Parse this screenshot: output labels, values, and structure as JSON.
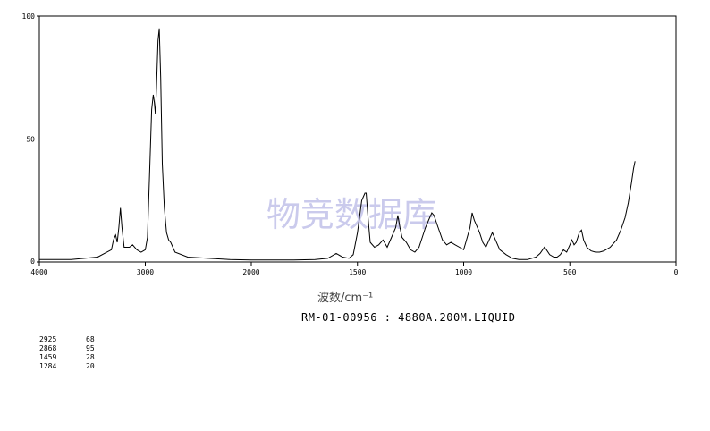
{
  "chart_data": {
    "type": "line",
    "title": "",
    "xlabel": "波数/cm⁻¹",
    "ylabel": "",
    "xlim": [
      4000,
      0
    ],
    "ylim": [
      0,
      100
    ],
    "x_ticks": [
      "4000",
      "3000",
      "2000",
      "1500",
      "1000",
      "500",
      "0"
    ],
    "y_ticks": [
      "100",
      "50",
      "0"
    ],
    "grid": false,
    "series": [
      {
        "points": [
          [
            4000,
            1
          ],
          [
            3700,
            1
          ],
          [
            3450,
            2
          ],
          [
            3320,
            5
          ],
          [
            3300,
            9
          ],
          [
            3280,
            11
          ],
          [
            3265,
            8
          ],
          [
            3250,
            14
          ],
          [
            3235,
            22
          ],
          [
            3220,
            14
          ],
          [
            3200,
            6
          ],
          [
            3150,
            6
          ],
          [
            3120,
            7
          ],
          [
            3080,
            5
          ],
          [
            3040,
            4
          ],
          [
            3000,
            5
          ],
          [
            2980,
            10
          ],
          [
            2960,
            35
          ],
          [
            2940,
            62
          ],
          [
            2925,
            68
          ],
          [
            2915,
            65
          ],
          [
            2905,
            60
          ],
          [
            2895,
            70
          ],
          [
            2880,
            90
          ],
          [
            2868,
            95
          ],
          [
            2855,
            75
          ],
          [
            2840,
            40
          ],
          [
            2820,
            22
          ],
          [
            2800,
            12
          ],
          [
            2780,
            9
          ],
          [
            2760,
            8
          ],
          [
            2720,
            4
          ],
          [
            2600,
            2
          ],
          [
            2400,
            1.5
          ],
          [
            2200,
            1
          ],
          [
            2000,
            0.8
          ],
          [
            1800,
            0.8
          ],
          [
            1700,
            1
          ],
          [
            1640,
            1.5
          ],
          [
            1600,
            3.5
          ],
          [
            1570,
            2
          ],
          [
            1540,
            1.5
          ],
          [
            1520,
            3
          ],
          [
            1500,
            12
          ],
          [
            1480,
            25
          ],
          [
            1465,
            28
          ],
          [
            1459,
            28
          ],
          [
            1450,
            18
          ],
          [
            1440,
            8
          ],
          [
            1420,
            6
          ],
          [
            1400,
            7
          ],
          [
            1380,
            9
          ],
          [
            1360,
            6
          ],
          [
            1340,
            10
          ],
          [
            1320,
            14
          ],
          [
            1310,
            19
          ],
          [
            1300,
            14
          ],
          [
            1290,
            10
          ],
          [
            1270,
            8
          ],
          [
            1250,
            5
          ],
          [
            1230,
            4
          ],
          [
            1210,
            6
          ],
          [
            1180,
            14
          ],
          [
            1160,
            18
          ],
          [
            1150,
            20
          ],
          [
            1140,
            19
          ],
          [
            1120,
            14
          ],
          [
            1100,
            9
          ],
          [
            1080,
            7
          ],
          [
            1060,
            8
          ],
          [
            1040,
            7
          ],
          [
            1020,
            6
          ],
          [
            1000,
            5
          ],
          [
            990,
            8
          ],
          [
            970,
            14
          ],
          [
            960,
            20
          ],
          [
            950,
            17
          ],
          [
            940,
            15
          ],
          [
            925,
            12
          ],
          [
            910,
            8
          ],
          [
            895,
            6
          ],
          [
            880,
            9
          ],
          [
            865,
            12
          ],
          [
            850,
            9
          ],
          [
            830,
            5
          ],
          [
            800,
            3
          ],
          [
            770,
            1.5
          ],
          [
            740,
            1
          ],
          [
            700,
            1
          ],
          [
            660,
            2
          ],
          [
            640,
            3.5
          ],
          [
            620,
            6
          ],
          [
            610,
            5
          ],
          [
            595,
            3
          ],
          [
            575,
            2
          ],
          [
            560,
            2
          ],
          [
            545,
            3
          ],
          [
            530,
            5
          ],
          [
            515,
            4
          ],
          [
            500,
            7
          ],
          [
            490,
            9
          ],
          [
            480,
            7
          ],
          [
            470,
            8
          ],
          [
            455,
            12
          ],
          [
            445,
            13
          ],
          [
            435,
            9
          ],
          [
            420,
            6
          ],
          [
            400,
            4.5
          ],
          [
            380,
            4
          ],
          [
            360,
            4
          ],
          [
            340,
            4.5
          ],
          [
            310,
            6
          ],
          [
            280,
            9
          ],
          [
            260,
            13
          ],
          [
            240,
            18
          ],
          [
            225,
            24
          ],
          [
            210,
            32
          ],
          [
            200,
            38
          ],
          [
            193,
            41
          ]
        ]
      }
    ]
  },
  "caption": "RM-01-00956 : 4880A.200M.LIQUID",
  "watermark": "物竞数据库",
  "peak_table": [
    {
      "wavenumber": "2925",
      "value": "68"
    },
    {
      "wavenumber": "2868",
      "value": "95"
    },
    {
      "wavenumber": "1459",
      "value": "28"
    },
    {
      "wavenumber": "1284",
      "value": "20"
    }
  ]
}
